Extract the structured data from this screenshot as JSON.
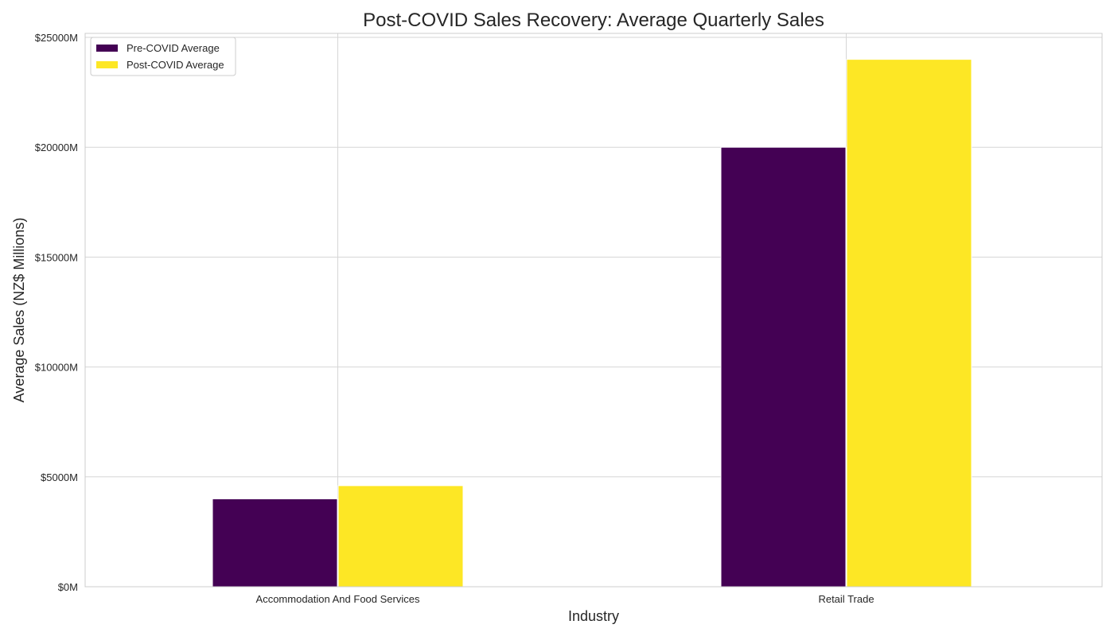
{
  "chart_data": {
    "type": "bar",
    "title": "Post-COVID Sales Recovery: Average Quarterly Sales",
    "xlabel": "Industry",
    "ylabel": "Average Sales (NZ$ Millions)",
    "categories": [
      "Accommodation And Food Services",
      "Retail Trade"
    ],
    "series": [
      {
        "name": "Pre-COVID Average",
        "values": [
          4000,
          20000
        ],
        "color": "#440154"
      },
      {
        "name": "Post-COVID Average",
        "values": [
          4600,
          24000
        ],
        "color": "#fde725"
      }
    ],
    "ylim": [
      0,
      25000
    ],
    "yticks": [
      0,
      5000,
      10000,
      15000,
      20000,
      25000
    ],
    "ytick_labels": [
      "$0M",
      "$5000M",
      "$10000M",
      "$15000M",
      "$20000M",
      "$25000M"
    ],
    "grid": true,
    "legend_position": "top-left"
  }
}
